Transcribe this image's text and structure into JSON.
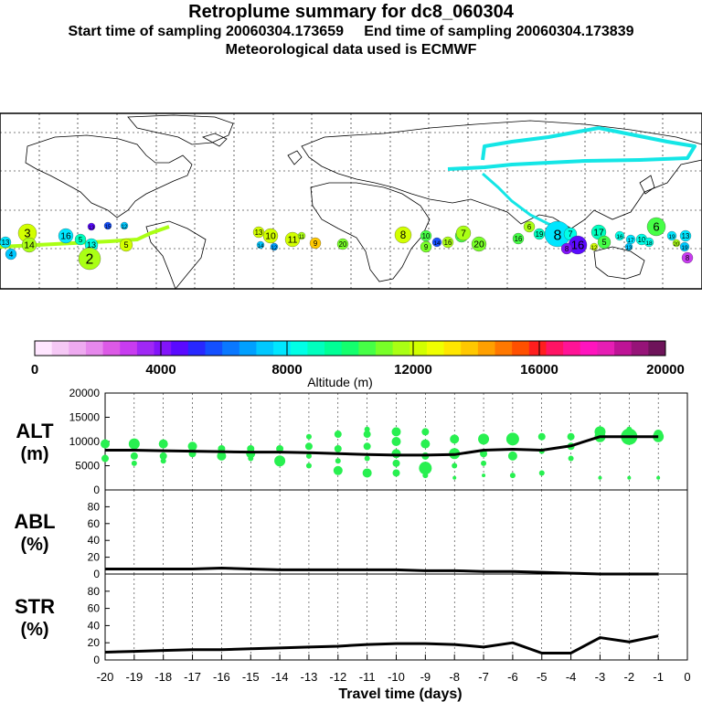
{
  "header": {
    "title": "Retroplume summary for dc8_060304",
    "start_label": "Start time of sampling 20060304.173659",
    "end_label": "End time of sampling 20060304.173839",
    "met_label": "Meteorological data used is ECMWF"
  },
  "colorbar": {
    "label": "Altitude (m)",
    "ticks": [
      "0",
      "4000",
      "8000",
      "12000",
      "16000",
      "20000"
    ],
    "colors": [
      "#ffe6ff",
      "#f5c8f5",
      "#eeaaf0",
      "#e688ec",
      "#dc5ae6",
      "#c83cf0",
      "#a028f5",
      "#8214fa",
      "#5a0aff",
      "#2828ff",
      "#1450ff",
      "#0a78ff",
      "#00a0ff",
      "#00c8ff",
      "#00e6ff",
      "#00ffe6",
      "#00ffbe",
      "#00ff96",
      "#14ff6e",
      "#46ff46",
      "#78ff28",
      "#aaff14",
      "#d2ff00",
      "#f0ff00",
      "#ffe600",
      "#ffc800",
      "#ffa000",
      "#ff7800",
      "#ff5000",
      "#ff1e1e",
      "#ff1464",
      "#ff1496",
      "#ff14be",
      "#e61eb4",
      "#be1496",
      "#961478",
      "#6e145a"
    ]
  },
  "map": {
    "trajectory_color": "#14e6e6",
    "labels": [
      "3",
      "13",
      "14",
      "4",
      "16",
      "5",
      "13",
      "2",
      "5",
      "13",
      "15",
      "12",
      "13",
      "11",
      "10",
      "12",
      "14",
      "11",
      "9",
      "20",
      "8",
      "10",
      "9",
      "14",
      "16",
      "15",
      "7",
      "20",
      "16",
      "6",
      "19",
      "8",
      "7",
      "17",
      "5",
      "16",
      "6",
      "10",
      "13",
      "8",
      "19",
      "19",
      "20",
      "18",
      "17",
      "16",
      "13",
      "12",
      "8"
    ]
  },
  "panels": {
    "alt": {
      "label": "ALT",
      "unit": "(m)",
      "yticks": [
        "20000",
        "15000",
        "10000",
        "5000",
        "0"
      ]
    },
    "abl": {
      "label": "ABL",
      "unit": "(%)",
      "yticks": [
        "80",
        "60",
        "40",
        "20",
        "0"
      ]
    },
    "str": {
      "label": "STR",
      "unit": "(%)",
      "yticks": [
        "80",
        "60",
        "40",
        "20",
        "0"
      ]
    },
    "xticks": [
      "-20",
      "-19",
      "-18",
      "-17",
      "-16",
      "-15",
      "-14",
      "-13",
      "-12",
      "-11",
      "-10",
      "-9",
      "-8",
      "-7",
      "-6",
      "-5",
      "-4",
      "-3",
      "-2",
      "-1",
      "0"
    ],
    "xlabel": "Travel time (days)",
    "dot_color": "#28f050"
  },
  "chart_data": {
    "type": "line",
    "title": "Retroplume summary for dc8_060304",
    "xlabel": "Travel time (days)",
    "x": [
      -20,
      -19,
      -18,
      -17,
      -16,
      -15,
      -14,
      -13,
      -12,
      -11,
      -10,
      -9,
      -8,
      -7,
      -6,
      -5,
      -4,
      -3,
      -2,
      -1
    ],
    "xlim": [
      -20,
      0
    ],
    "series": [
      {
        "name": "ALT",
        "ylabel": "ALT (m)",
        "ylim": [
          0,
          20000
        ],
        "values": [
          8200,
          8200,
          8100,
          8000,
          7900,
          7800,
          7800,
          7700,
          7500,
          7300,
          7200,
          7200,
          7300,
          8200,
          8400,
          8200,
          9100,
          11000,
          11000,
          11000
        ]
      },
      {
        "name": "ABL",
        "ylabel": "ABL (%)",
        "ylim": [
          0,
          100
        ],
        "values": [
          6,
          6,
          6,
          6,
          7,
          6,
          5,
          5,
          5,
          5,
          5,
          4,
          4,
          3,
          3,
          2,
          1,
          0,
          0,
          0
        ]
      },
      {
        "name": "STR",
        "ylabel": "STR (%)",
        "ylim": [
          0,
          100
        ],
        "values": [
          9,
          10,
          11,
          12,
          12,
          13,
          14,
          15,
          16,
          18,
          19,
          19,
          18,
          15,
          20,
          8,
          8,
          26,
          21,
          28
        ]
      }
    ],
    "scatter_alt": [
      {
        "x": -20,
        "y": 9500,
        "s": 5
      },
      {
        "x": -20,
        "y": 6500,
        "s": 4
      },
      {
        "x": -19,
        "y": 9500,
        "s": 6
      },
      {
        "x": -19,
        "y": 7000,
        "s": 4
      },
      {
        "x": -19,
        "y": 5500,
        "s": 3
      },
      {
        "x": -18,
        "y": 9500,
        "s": 5
      },
      {
        "x": -18,
        "y": 7000,
        "s": 4
      },
      {
        "x": -18,
        "y": 6000,
        "s": 3
      },
      {
        "x": -17,
        "y": 9000,
        "s": 5
      },
      {
        "x": -17,
        "y": 7500,
        "s": 4
      },
      {
        "x": -16,
        "y": 8500,
        "s": 4
      },
      {
        "x": -16,
        "y": 7000,
        "s": 5
      },
      {
        "x": -15,
        "y": 8500,
        "s": 4
      },
      {
        "x": -15,
        "y": 7500,
        "s": 5
      },
      {
        "x": -15,
        "y": 6500,
        "s": 3
      },
      {
        "x": -14,
        "y": 8500,
        "s": 4
      },
      {
        "x": -14,
        "y": 6000,
        "s": 6
      },
      {
        "x": -13,
        "y": 11000,
        "s": 3
      },
      {
        "x": -13,
        "y": 9000,
        "s": 4
      },
      {
        "x": -13,
        "y": 7000,
        "s": 3
      },
      {
        "x": -13,
        "y": 5000,
        "s": 3
      },
      {
        "x": -12,
        "y": 11500,
        "s": 4
      },
      {
        "x": -12,
        "y": 8500,
        "s": 4
      },
      {
        "x": -12,
        "y": 6000,
        "s": 3
      },
      {
        "x": -12,
        "y": 4000,
        "s": 5
      },
      {
        "x": -11,
        "y": 12500,
        "s": 3
      },
      {
        "x": -11,
        "y": 11500,
        "s": 4
      },
      {
        "x": -11,
        "y": 9000,
        "s": 4
      },
      {
        "x": -11,
        "y": 6500,
        "s": 3
      },
      {
        "x": -11,
        "y": 3500,
        "s": 5
      },
      {
        "x": -10,
        "y": 12000,
        "s": 5
      },
      {
        "x": -10,
        "y": 10000,
        "s": 5
      },
      {
        "x": -10,
        "y": 7500,
        "s": 5
      },
      {
        "x": -10,
        "y": 5500,
        "s": 4
      },
      {
        "x": -10,
        "y": 3500,
        "s": 4
      },
      {
        "x": -9,
        "y": 12000,
        "s": 4
      },
      {
        "x": -9,
        "y": 9500,
        "s": 5
      },
      {
        "x": -9,
        "y": 7000,
        "s": 4
      },
      {
        "x": -9,
        "y": 4500,
        "s": 7
      },
      {
        "x": -9,
        "y": 3000,
        "s": 3
      },
      {
        "x": -8,
        "y": 10500,
        "s": 5
      },
      {
        "x": -8,
        "y": 7500,
        "s": 6
      },
      {
        "x": -8,
        "y": 5000,
        "s": 3
      },
      {
        "x": -8,
        "y": 2500,
        "s": 2
      },
      {
        "x": -7,
        "y": 10500,
        "s": 6
      },
      {
        "x": -7,
        "y": 7500,
        "s": 4
      },
      {
        "x": -7,
        "y": 5500,
        "s": 3
      },
      {
        "x": -7,
        "y": 3000,
        "s": 2
      },
      {
        "x": -6,
        "y": 10500,
        "s": 7
      },
      {
        "x": -6,
        "y": 7000,
        "s": 5
      },
      {
        "x": -6,
        "y": 3000,
        "s": 3
      },
      {
        "x": -5,
        "y": 11000,
        "s": 4
      },
      {
        "x": -5,
        "y": 8000,
        "s": 3
      },
      {
        "x": -5,
        "y": 3500,
        "s": 3
      },
      {
        "x": -4,
        "y": 11000,
        "s": 4
      },
      {
        "x": -4,
        "y": 9000,
        "s": 4
      },
      {
        "x": -4,
        "y": 6500,
        "s": 3
      },
      {
        "x": -3,
        "y": 12000,
        "s": 6
      },
      {
        "x": -3,
        "y": 11000,
        "s": 6
      },
      {
        "x": -3,
        "y": 2500,
        "s": 2
      },
      {
        "x": -2,
        "y": 12500,
        "s": 3
      },
      {
        "x": -2,
        "y": 11000,
        "s": 9
      },
      {
        "x": -2,
        "y": 2500,
        "s": 2
      },
      {
        "x": -1,
        "y": 11500,
        "s": 5
      },
      {
        "x": -1,
        "y": 11000,
        "s": 6
      },
      {
        "x": -1,
        "y": 2500,
        "s": 2
      }
    ]
  }
}
